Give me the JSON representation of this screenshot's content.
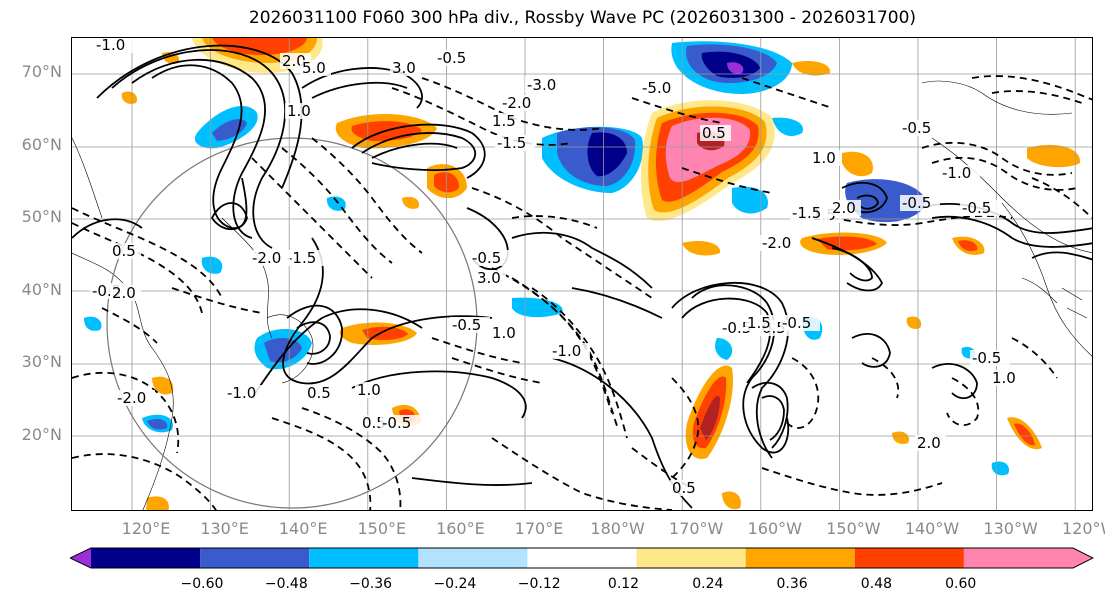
{
  "title": "2026031100 F060 300 hPa div., Rossby Wave PC (2026031300 - 2026031700)",
  "lat_labels": [
    "70°N",
    "60°N",
    "50°N",
    "40°N",
    "30°N",
    "20°N"
  ],
  "lon_labels": [
    "120°E",
    "130°E",
    "140°E",
    "150°E",
    "160°E",
    "170°E",
    "180°W",
    "170°W",
    "160°W",
    "150°W",
    "140°W",
    "130°W",
    "120°W"
  ],
  "colorbar": {
    "ticks": [
      "−0.60",
      "−0.48",
      "−0.36",
      "−0.24",
      "−0.12",
      "0.12",
      "0.24",
      "0.36",
      "0.48",
      "0.60"
    ],
    "colors": [
      "#9b30d9",
      "#00008b",
      "#3a5bcc",
      "#00bfff",
      "#b3e2ff",
      "#ffffff",
      "#ffe88a",
      "#ffa500",
      "#ff4000",
      "#b22222",
      "#ff85b0"
    ]
  },
  "contour_labels": [
    "-1.0",
    "2.0",
    "5.0",
    "3.0",
    "-3.0",
    "-5.0",
    "-0.5",
    "1.0",
    "-1.5",
    "1.5",
    "-2.0",
    "0.5",
    "-0.5",
    "-1.0",
    "1.0",
    "-0.5",
    "1.5",
    "-1.5",
    "2.0",
    "-2.0",
    "-0.5",
    "-0.5",
    "-1.5",
    "-2.0",
    "0.5",
    "-0.5",
    "2.0",
    "3.0",
    "1.0",
    "-0.5",
    "-1.0",
    "-0.5",
    "0.5",
    "-0.5",
    "1.5",
    "2.0",
    "-0.5",
    "1.0",
    "-2.0",
    "0.5",
    "1.0",
    "0.5",
    "-0.5",
    "0.5",
    "-1.0"
  ]
}
